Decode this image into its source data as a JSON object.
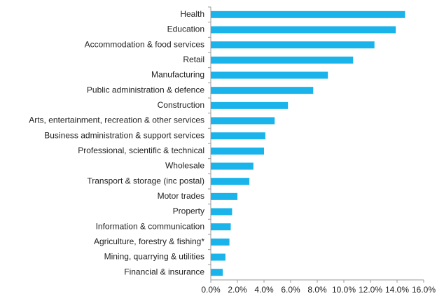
{
  "chart_data": {
    "type": "bar",
    "orientation": "horizontal",
    "categories": [
      "Health",
      "Education",
      "Accommodation & food services",
      "Retail",
      "Manufacturing",
      "Public administration & defence",
      "Construction",
      "Arts, entertainment, recreation & other services",
      "Business administration & support services",
      "Professional, scientific & technical",
      "Wholesale",
      "Transport & storage (inc postal)",
      "Motor trades",
      "Property",
      "Information & communication",
      "Agriculture, forestry & fishing*",
      "Mining, quarrying & utilities",
      "Financial & insurance"
    ],
    "values": [
      14.6,
      13.9,
      12.3,
      10.7,
      8.8,
      7.7,
      5.8,
      4.8,
      4.1,
      4.0,
      3.2,
      2.9,
      2.0,
      1.6,
      1.5,
      1.4,
      1.1,
      0.9
    ],
    "color": "#1ab4ea",
    "xlim": [
      0,
      16
    ],
    "xticks": [
      {
        "value": 0,
        "label": "0.0%"
      },
      {
        "value": 2,
        "label": "2.0%"
      },
      {
        "value": 4,
        "label": "4.0%"
      },
      {
        "value": 6,
        "label": "6.0%"
      },
      {
        "value": 8,
        "label": "8.0%"
      },
      {
        "value": 10,
        "label": "10.0%"
      },
      {
        "value": 12,
        "label": "12.0%"
      },
      {
        "value": 14,
        "label": "14.0%"
      },
      {
        "value": 16,
        "label": "16.0%"
      }
    ],
    "grid": false
  }
}
